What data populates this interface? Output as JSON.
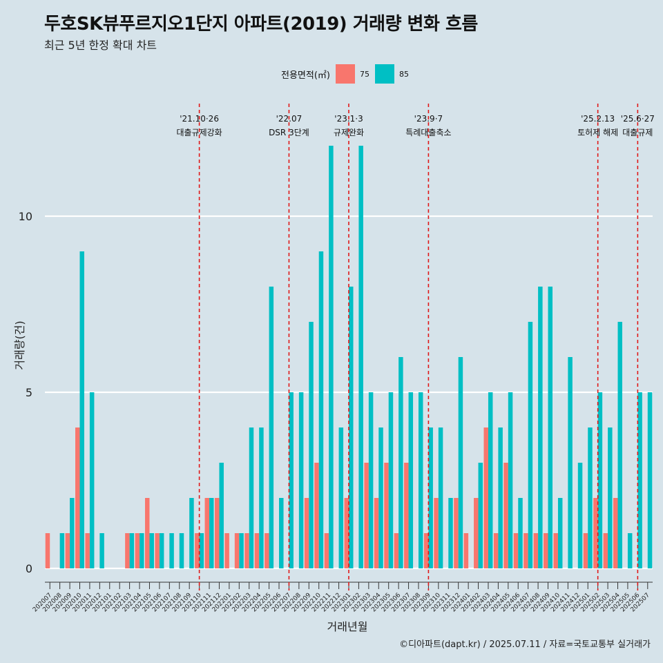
{
  "title": "두호SK뷰푸르지오1단지 아파트(2019) 거래량 변화 흐름",
  "subtitle": "최근 5년 한정 확대 차트",
  "caption": "©디아파트(dapt.kr) / 2025.07.11 / 자료=국토교통부 실거래가",
  "legend": {
    "title": "전용면적(㎡)",
    "items": [
      {
        "label": "75",
        "color": "#f8766d"
      },
      {
        "label": "85",
        "color": "#00bfc4"
      }
    ]
  },
  "chart_data": {
    "type": "bar",
    "xlabel": "거래년월",
    "ylabel": "거래량(건)",
    "ylim": [
      0,
      12
    ],
    "yticks": [
      0,
      5,
      10
    ],
    "grid": true,
    "legend_position": "top",
    "categories": [
      "202007",
      "202008",
      "202009",
      "202010",
      "202011",
      "202012",
      "202101",
      "202102",
      "202103",
      "202104",
      "202105",
      "202106",
      "202107",
      "202108",
      "202109",
      "202110",
      "202111",
      "202112",
      "202201",
      "202202",
      "202203",
      "202204",
      "202205",
      "202206",
      "202207",
      "202208",
      "202209",
      "202210",
      "202211",
      "202212",
      "202301",
      "202302",
      "202303",
      "202304",
      "202305",
      "202306",
      "202307",
      "202308",
      "202309",
      "202310",
      "202311",
      "202312",
      "202401",
      "202402",
      "202403",
      "202404",
      "202405",
      "202406",
      "202407",
      "202408",
      "202409",
      "202410",
      "202411",
      "202412",
      "202501",
      "202502",
      "202503",
      "202504",
      "202505",
      "202506",
      "202507"
    ],
    "series": [
      {
        "name": "75",
        "color": "#f8766d",
        "values": [
          1,
          0,
          1,
          4,
          1,
          0,
          0,
          0,
          1,
          1,
          2,
          1,
          0,
          0,
          0,
          1,
          2,
          2,
          1,
          1,
          1,
          1,
          1,
          0,
          0,
          0,
          2,
          3,
          1,
          0,
          2,
          0,
          3,
          2,
          3,
          1,
          3,
          0,
          1,
          2,
          0,
          2,
          1,
          2,
          4,
          1,
          3,
          1,
          1,
          1,
          1,
          1,
          0,
          0,
          1,
          2,
          1,
          2,
          0,
          0,
          0
        ]
      },
      {
        "name": "85",
        "color": "#00bfc4",
        "values": [
          0,
          1,
          2,
          9,
          5,
          1,
          0,
          0,
          1,
          1,
          1,
          1,
          1,
          1,
          2,
          1,
          2,
          3,
          0,
          1,
          4,
          4,
          8,
          2,
          5,
          5,
          7,
          9,
          12,
          4,
          8,
          12,
          5,
          4,
          5,
          6,
          5,
          5,
          4,
          4,
          2,
          6,
          0,
          3,
          5,
          4,
          5,
          2,
          7,
          8,
          8,
          2,
          6,
          3,
          4,
          5,
          4,
          7,
          1,
          5,
          5
        ]
      }
    ],
    "annotations": [
      {
        "date": "'21.10·26",
        "text": "대출규제강화",
        "category": "202110"
      },
      {
        "date": "'22.07",
        "text": "DSR 3단계",
        "category": "202207"
      },
      {
        "date": "'23.1·3",
        "text": "규제완화",
        "category": "202301"
      },
      {
        "date": "'23.9·7",
        "text": "특례대출축소",
        "category": "202309"
      },
      {
        "date": "'25.2.13",
        "text": "토허제 해제",
        "category": "202502"
      },
      {
        "date": "'25.6·27",
        "text": "대출규제",
        "category": "202506"
      }
    ]
  }
}
